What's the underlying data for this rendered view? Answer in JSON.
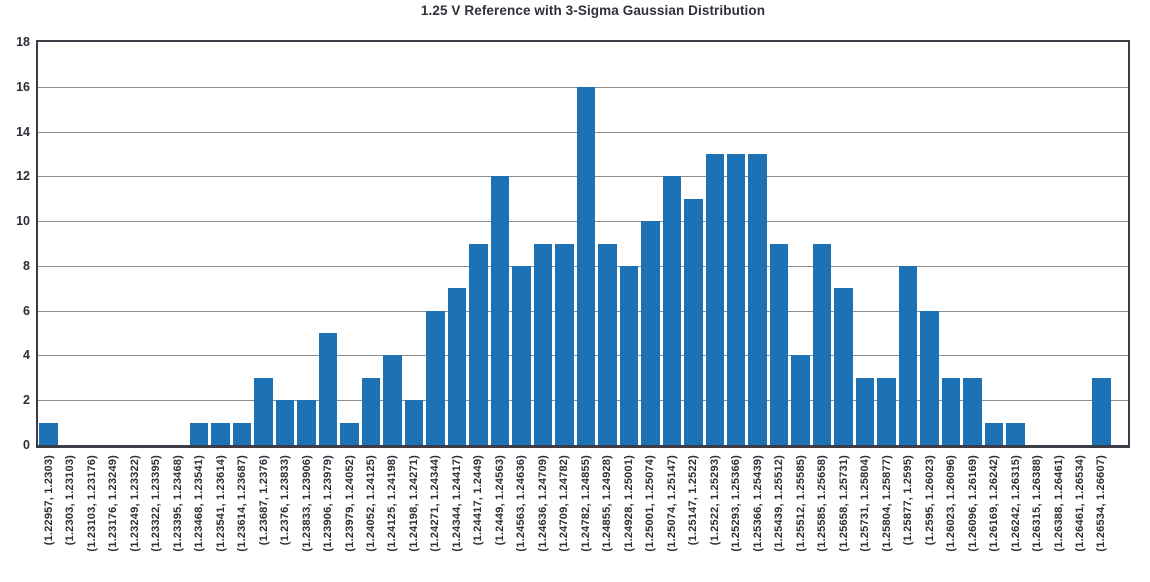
{
  "title": "1.25 V Reference with 3-Sigma Gaussian Distribution",
  "colors": {
    "bar": "#1d71b5",
    "axis": "#3c3c46",
    "grid": "#8e8e8e",
    "text": "#2d2d37"
  },
  "chart_data": {
    "type": "bar",
    "title": "1.25 V Reference with 3-Sigma Gaussian Distribution",
    "xlabel": "",
    "ylabel": "",
    "ylim": [
      0,
      18
    ],
    "yticks": [
      0,
      2,
      4,
      6,
      8,
      10,
      12,
      14,
      16,
      18
    ],
    "grid": true,
    "legend": "none",
    "x_tick_rotation": 90,
    "categories": [
      "(1.22957, 1.2303)",
      "(1.2303, 1.23103)",
      "(1.23103, 1.23176)",
      "(1.23176, 1.23249)",
      "(1.23249, 1.23322)",
      "(1.23322, 1.23395)",
      "(1.23395, 1.23468)",
      "(1.23468, 1.23541)",
      "(1.23541, 1.23614)",
      "(1.23614, 1.23687)",
      "(1.23687, 1.2376)",
      "(1.2376, 1.23833)",
      "(1.23833, 1.23906)",
      "(1.23906, 1.23979)",
      "(1.23979, 1.24052)",
      "(1.24052, 1.24125)",
      "(1.24125, 1.24198)",
      "(1.24198, 1.24271)",
      "(1.24271, 1.24344)",
      "(1.24344, 1.24417)",
      "(1.24417, 1.2449)",
      "(1.2449, 1.24563)",
      "(1.24563, 1.24636)",
      "(1.24636, 1.24709)",
      "(1.24709, 1.24782)",
      "(1.24782, 1.24855)",
      "(1.24855, 1.24928)",
      "(1.24928, 1.25001)",
      "(1.25001, 1.25074)",
      "(1.25074, 1.25147)",
      "(1.25147, 1.2522)",
      "(1.2522, 1.25293)",
      "(1.25293, 1.25366)",
      "(1.25366, 1.25439)",
      "(1.25439, 1.25512)",
      "(1.25512, 1.25585)",
      "(1.25585, 1.25658)",
      "(1.25658, 1.25731)",
      "(1.25731, 1.25804)",
      "(1.25804, 1.25877)",
      "(1.25877, 1.2595)",
      "(1.2595, 1.26023)",
      "(1.26023, 1.26096)",
      "(1.26096, 1.26169)",
      "(1.26169, 1.26242)",
      "(1.26242, 1.26315)",
      "(1.26315, 1.26388)",
      "(1.26388, 1.26461)",
      "(1.26461, 1.26534)",
      "(1.26534, 1.26607)"
    ],
    "values": [
      1,
      0,
      0,
      0,
      0,
      0,
      0,
      1,
      1,
      1,
      3,
      2,
      2,
      5,
      1,
      3,
      4,
      2,
      6,
      7,
      9,
      12,
      8,
      9,
      9,
      16,
      9,
      8,
      10,
      12,
      11,
      13,
      13,
      13,
      9,
      4,
      9,
      7,
      3,
      3,
      8,
      6,
      3,
      3,
      1,
      1,
      0,
      0,
      0,
      3
    ]
  }
}
